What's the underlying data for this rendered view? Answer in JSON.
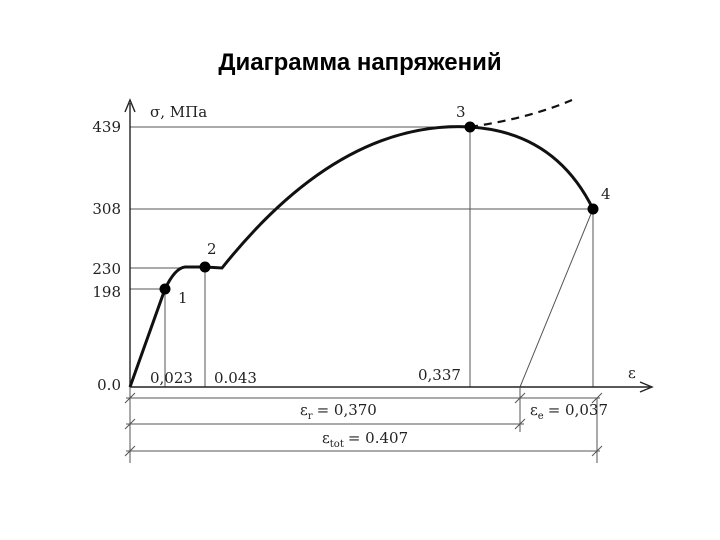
{
  "title": "Диаграмма напряжений",
  "y_axis": {
    "label": "σ, МПа",
    "ticks": [
      "439",
      "308",
      "230",
      "198",
      "0.0"
    ]
  },
  "x_axis": {
    "label": "ε",
    "ticks": [
      "0,023",
      "0.043",
      "0,337"
    ]
  },
  "points": [
    "1",
    "2",
    "3",
    "4"
  ],
  "dimensions": [
    {
      "symbol": "ε",
      "subscript": "r",
      "value": "= 0,370"
    },
    {
      "symbol": "ε",
      "subscript": "e",
      "value": "= 0,037"
    },
    {
      "symbol": "ε",
      "subscript": "tot",
      "value": "= 0.407"
    }
  ]
}
